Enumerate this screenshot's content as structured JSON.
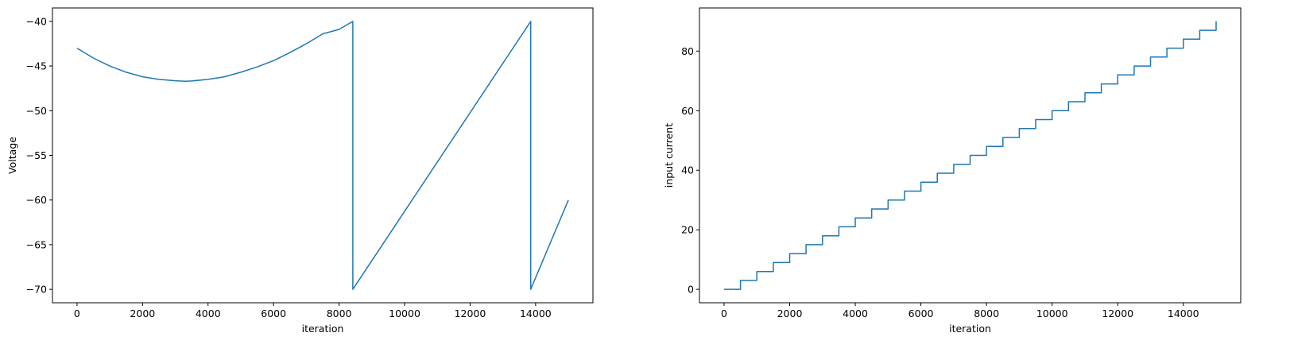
{
  "chart_data": [
    {
      "type": "line",
      "title": "",
      "xlabel": "iteration",
      "ylabel": "Voltage",
      "xlim": [
        -750,
        15750
      ],
      "ylim": [
        -71.5,
        -38.5
      ],
      "xticks": [
        0,
        2000,
        4000,
        6000,
        8000,
        10000,
        12000,
        14000
      ],
      "xtick_labels": [
        "0",
        "2000",
        "4000",
        "6000",
        "8000",
        "10000",
        "12000",
        "14000"
      ],
      "yticks": [
        -40,
        -45,
        -50,
        -55,
        -60,
        -65,
        -70
      ],
      "ytick_labels": [
        "−40",
        "−45",
        "−50",
        "−55",
        "−60",
        "−65",
        "−70"
      ],
      "grid": false,
      "legend": "none",
      "color": "#1f77b4",
      "series": [
        {
          "x": [
            0,
            500,
            1000,
            1500,
            2000,
            2500,
            3000,
            3300,
            3500,
            4000,
            4500,
            5000,
            5500,
            6000,
            6500,
            7000,
            7500,
            8000,
            8420,
            8420,
            13850,
            13850,
            15000
          ],
          "y": [
            -43.0,
            -44.1,
            -45.0,
            -45.7,
            -46.2,
            -46.5,
            -46.65,
            -46.7,
            -46.67,
            -46.5,
            -46.2,
            -45.7,
            -45.1,
            -44.4,
            -43.5,
            -42.5,
            -41.4,
            -40.9,
            -40.0,
            -70.0,
            -40.0,
            -70.0,
            -60.0
          ]
        }
      ]
    },
    {
      "type": "line",
      "title": "",
      "xlabel": "iteration",
      "ylabel": "input current",
      "xlim": [
        -750,
        15750
      ],
      "ylim": [
        -4.5,
        94.5
      ],
      "xticks": [
        0,
        2000,
        4000,
        6000,
        8000,
        10000,
        12000,
        14000
      ],
      "xtick_labels": [
        "0",
        "2000",
        "4000",
        "6000",
        "8000",
        "10000",
        "12000",
        "14000"
      ],
      "yticks": [
        0,
        20,
        40,
        60,
        80
      ],
      "ytick_labels": [
        "0",
        "20",
        "40",
        "60",
        "80"
      ],
      "grid": false,
      "legend": "none",
      "color": "#1f77b4",
      "series": [
        {
          "step": 500,
          "increment": 3,
          "x_start": 0,
          "x_end": 15000,
          "y_start": 0,
          "y_end": 90
        }
      ]
    }
  ]
}
